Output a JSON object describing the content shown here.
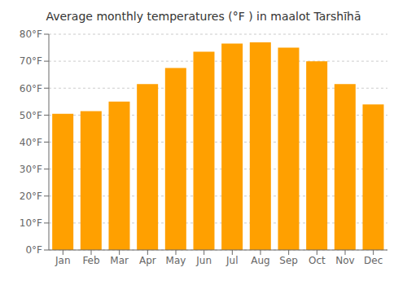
{
  "chart_data": {
    "type": "bar",
    "title": "Average monthly temperatures (°F ) in maalot Tarshīhā",
    "categories": [
      "Jan",
      "Feb",
      "Mar",
      "Apr",
      "May",
      "Jun",
      "Jul",
      "Aug",
      "Sep",
      "Oct",
      "Nov",
      "Dec"
    ],
    "values": [
      50.5,
      51.5,
      55.0,
      61.5,
      67.5,
      73.5,
      76.5,
      77.0,
      75.0,
      70.0,
      61.5,
      54.0
    ],
    "color": "#FFA000",
    "ylim": [
      0,
      80
    ],
    "yticks": [
      {
        "value": 0,
        "label": "0°F"
      },
      {
        "value": 10,
        "label": "10°F"
      },
      {
        "value": 20,
        "label": "20°F"
      },
      {
        "value": 30,
        "label": "30°F"
      },
      {
        "value": 40,
        "label": "40°F"
      },
      {
        "value": 50,
        "label": "50°F"
      },
      {
        "value": 60,
        "label": "60°F"
      },
      {
        "value": 70,
        "label": "70°F"
      },
      {
        "value": 80,
        "label": "80°F"
      }
    ],
    "grid": true
  }
}
